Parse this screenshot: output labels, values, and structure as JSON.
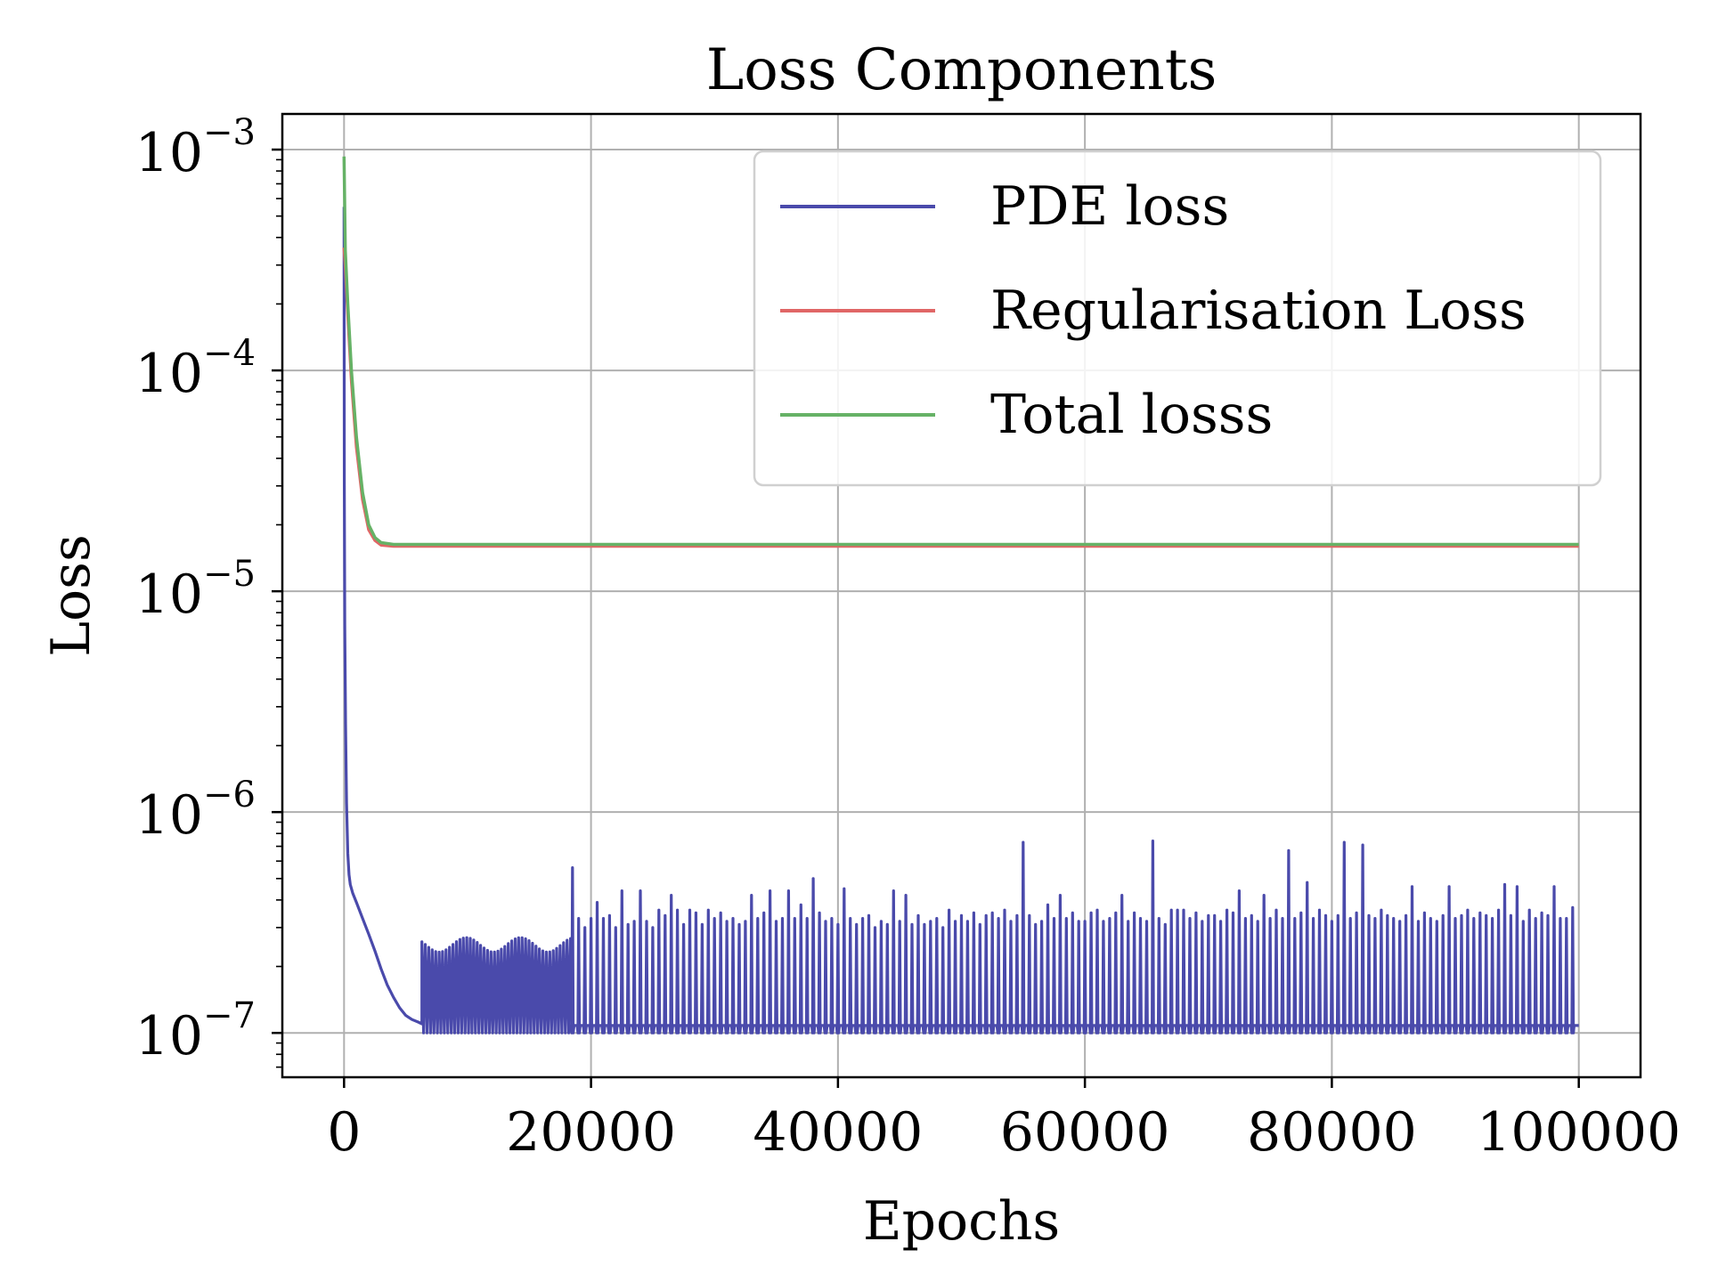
{
  "chart_data": {
    "type": "line",
    "title": "Loss Components",
    "xlabel": "Epochs",
    "ylabel": "Loss",
    "xlim": [
      -5000,
      105000
    ],
    "ylim": [
      6.3e-08,
      0.00145
    ],
    "yscale": "log",
    "grid": true,
    "legend_position": "top-right",
    "x_ticks": [
      0,
      20000,
      40000,
      60000,
      80000,
      100000
    ],
    "x_tick_labels": [
      "0",
      "20000",
      "40000",
      "60000",
      "80000",
      "100000"
    ],
    "y_ticks": [
      1e-07,
      1e-06,
      1e-05,
      0.0001,
      0.001
    ],
    "y_tick_labels": [
      {
        "base": "10",
        "exp": "−7"
      },
      {
        "base": "10",
        "exp": "−6"
      },
      {
        "base": "10",
        "exp": "−5"
      },
      {
        "base": "10",
        "exp": "−4"
      },
      {
        "base": "10",
        "exp": "−3"
      }
    ],
    "series": [
      {
        "name": "PDE loss",
        "color": "#4a4aab",
        "x": [
          0,
          20,
          60,
          120,
          200,
          300,
          400,
          500,
          700,
          1000,
          1500,
          2000,
          2500,
          3000,
          3500,
          4000,
          4500,
          5000,
          5500,
          6000,
          6300
        ],
        "y": [
          0.00055,
          3e-05,
          7e-06,
          2.5e-06,
          1.1e-06,
          6.5e-07,
          5.2e-07,
          4.7e-07,
          4.3e-07,
          3.9e-07,
          3.3e-07,
          2.8e-07,
          2.35e-07,
          1.95e-07,
          1.65e-07,
          1.45e-07,
          1.3e-07,
          1.2e-07,
          1.15e-07,
          1.12e-07,
          1.1e-07
        ],
        "dense_region": {
          "x_start": 6300,
          "x_end": 18600,
          "low": 1e-07,
          "high": 2.7e-07,
          "step": 140
        },
        "baseline": 1.08e-07,
        "spike_floor": 1e-07,
        "spikes": [
          [
            18500,
            5.6e-07
          ],
          [
            19000,
            3.3e-07
          ],
          [
            19500,
            3e-07
          ],
          [
            20000,
            3.3e-07
          ],
          [
            20500,
            3.9e-07
          ],
          [
            21000,
            3.3e-07
          ],
          [
            21500,
            3.4e-07
          ],
          [
            22000,
            3e-07
          ],
          [
            22500,
            4.4e-07
          ],
          [
            23000,
            3.1e-07
          ],
          [
            23500,
            3.2e-07
          ],
          [
            24000,
            4.4e-07
          ],
          [
            24500,
            3.2e-07
          ],
          [
            25000,
            3e-07
          ],
          [
            25500,
            3.6e-07
          ],
          [
            26000,
            3.4e-07
          ],
          [
            26500,
            4.2e-07
          ],
          [
            27000,
            3.6e-07
          ],
          [
            27500,
            3.1e-07
          ],
          [
            28000,
            3.6e-07
          ],
          [
            28500,
            3.5e-07
          ],
          [
            29000,
            3.1e-07
          ],
          [
            29500,
            3.6e-07
          ],
          [
            30000,
            3.3e-07
          ],
          [
            30500,
            3.5e-07
          ],
          [
            31000,
            3.2e-07
          ],
          [
            31500,
            3.3e-07
          ],
          [
            32000,
            3.1e-07
          ],
          [
            32500,
            3.2e-07
          ],
          [
            33000,
            4.2e-07
          ],
          [
            33500,
            3.3e-07
          ],
          [
            34000,
            3.5e-07
          ],
          [
            34500,
            4.4e-07
          ],
          [
            35000,
            3.2e-07
          ],
          [
            35500,
            3.3e-07
          ],
          [
            36000,
            4.4e-07
          ],
          [
            36500,
            3.3e-07
          ],
          [
            37000,
            3.8e-07
          ],
          [
            37500,
            3.3e-07
          ],
          [
            38000,
            5e-07
          ],
          [
            38500,
            3.5e-07
          ],
          [
            39000,
            3.2e-07
          ],
          [
            39500,
            3.3e-07
          ],
          [
            40000,
            3.1e-07
          ],
          [
            40500,
            4.5e-07
          ],
          [
            41000,
            3.3e-07
          ],
          [
            41500,
            3.1e-07
          ],
          [
            42000,
            3.3e-07
          ],
          [
            42500,
            3.4e-07
          ],
          [
            43000,
            3e-07
          ],
          [
            43500,
            3.2e-07
          ],
          [
            44000,
            3.1e-07
          ],
          [
            44500,
            4.4e-07
          ],
          [
            45000,
            3.2e-07
          ],
          [
            45500,
            4.2e-07
          ],
          [
            46000,
            3.1e-07
          ],
          [
            46500,
            3.4e-07
          ],
          [
            47000,
            3.1e-07
          ],
          [
            47500,
            3.2e-07
          ],
          [
            48000,
            3.3e-07
          ],
          [
            48500,
            3e-07
          ],
          [
            49000,
            3.6e-07
          ],
          [
            49500,
            3.2e-07
          ],
          [
            50000,
            3.4e-07
          ],
          [
            50500,
            3.2e-07
          ],
          [
            51000,
            3.5e-07
          ],
          [
            51500,
            3.1e-07
          ],
          [
            52000,
            3.4e-07
          ],
          [
            52500,
            3.5e-07
          ],
          [
            53000,
            3.3e-07
          ],
          [
            53500,
            3.6e-07
          ],
          [
            54000,
            3.2e-07
          ],
          [
            54500,
            3.4e-07
          ],
          [
            55000,
            7.3e-07
          ],
          [
            55500,
            3.4e-07
          ],
          [
            56000,
            3.1e-07
          ],
          [
            56500,
            3.2e-07
          ],
          [
            57000,
            3.8e-07
          ],
          [
            57500,
            3.3e-07
          ],
          [
            58000,
            4.2e-07
          ],
          [
            58500,
            3.3e-07
          ],
          [
            59000,
            3.5e-07
          ],
          [
            59500,
            3.2e-07
          ],
          [
            60000,
            3.2e-07
          ],
          [
            60500,
            3.5e-07
          ],
          [
            61000,
            3.6e-07
          ],
          [
            61500,
            3.2e-07
          ],
          [
            62000,
            3.3e-07
          ],
          [
            62500,
            3.5e-07
          ],
          [
            63000,
            4.2e-07
          ],
          [
            63500,
            3.2e-07
          ],
          [
            64000,
            3.5e-07
          ],
          [
            64500,
            3.3e-07
          ],
          [
            65000,
            3.2e-07
          ],
          [
            65500,
            7.4e-07
          ],
          [
            66000,
            3.3e-07
          ],
          [
            66500,
            3.1e-07
          ],
          [
            67000,
            3.6e-07
          ],
          [
            67500,
            3.6e-07
          ],
          [
            68000,
            3.6e-07
          ],
          [
            68500,
            3.3e-07
          ],
          [
            69000,
            3.5e-07
          ],
          [
            69500,
            3.2e-07
          ],
          [
            70000,
            3.4e-07
          ],
          [
            70500,
            3.4e-07
          ],
          [
            71000,
            3.2e-07
          ],
          [
            71500,
            3.6e-07
          ],
          [
            72000,
            3.5e-07
          ],
          [
            72500,
            4.4e-07
          ],
          [
            73000,
            3.3e-07
          ],
          [
            73500,
            3.4e-07
          ],
          [
            74000,
            3.2e-07
          ],
          [
            74500,
            4.2e-07
          ],
          [
            75000,
            3.3e-07
          ],
          [
            75500,
            3.6e-07
          ],
          [
            76000,
            3.3e-07
          ],
          [
            76500,
            6.7e-07
          ],
          [
            77000,
            3.3e-07
          ],
          [
            77500,
            3.5e-07
          ],
          [
            78000,
            4.8e-07
          ],
          [
            78500,
            3.3e-07
          ],
          [
            79000,
            3.6e-07
          ],
          [
            79500,
            3.4e-07
          ],
          [
            80000,
            3.2e-07
          ],
          [
            80500,
            3.4e-07
          ],
          [
            81000,
            7.3e-07
          ],
          [
            81500,
            3.3e-07
          ],
          [
            82000,
            3.5e-07
          ],
          [
            82500,
            7.1e-07
          ],
          [
            83000,
            3.4e-07
          ],
          [
            83500,
            3.3e-07
          ],
          [
            84000,
            3.6e-07
          ],
          [
            84500,
            3.4e-07
          ],
          [
            85000,
            3.3e-07
          ],
          [
            85500,
            3.2e-07
          ],
          [
            86000,
            3.4e-07
          ],
          [
            86500,
            4.6e-07
          ],
          [
            87000,
            3.2e-07
          ],
          [
            87500,
            3.5e-07
          ],
          [
            88000,
            3.3e-07
          ],
          [
            88500,
            3.2e-07
          ],
          [
            89000,
            3.4e-07
          ],
          [
            89500,
            4.6e-07
          ],
          [
            90000,
            3.3e-07
          ],
          [
            90500,
            3.4e-07
          ],
          [
            91000,
            3.6e-07
          ],
          [
            91500,
            3.3e-07
          ],
          [
            92000,
            3.5e-07
          ],
          [
            92500,
            3.4e-07
          ],
          [
            93000,
            3.3e-07
          ],
          [
            93500,
            3.6e-07
          ],
          [
            94000,
            4.7e-07
          ],
          [
            94500,
            3.4e-07
          ],
          [
            95000,
            4.6e-07
          ],
          [
            95500,
            3.2e-07
          ],
          [
            96000,
            3.6e-07
          ],
          [
            96500,
            3.3e-07
          ],
          [
            97000,
            3.5e-07
          ],
          [
            97500,
            3.4e-07
          ],
          [
            98000,
            4.6e-07
          ],
          [
            98500,
            3.3e-07
          ],
          [
            99000,
            3.3e-07
          ],
          [
            99500,
            3.7e-07
          ]
        ],
        "x_end": 100000
      },
      {
        "name": "Regularisation Loss",
        "color": "#e06666",
        "x": [
          0,
          100,
          300,
          600,
          1000,
          1500,
          2000,
          2500,
          3000,
          4000,
          6000,
          10000,
          100000
        ],
        "y": [
          0.00036,
          0.0003,
          0.00018,
          9e-05,
          4.5e-05,
          2.6e-05,
          1.9e-05,
          1.7e-05,
          1.62e-05,
          1.6e-05,
          1.6e-05,
          1.6e-05,
          1.6e-05
        ]
      },
      {
        "name": "Total losss",
        "color": "#66b266",
        "x": [
          0,
          100,
          300,
          600,
          1000,
          1500,
          2000,
          2500,
          3000,
          4000,
          6000,
          10000,
          100000
        ],
        "y": [
          0.00093,
          0.00035,
          0.0002,
          0.0001,
          5e-05,
          2.8e-05,
          2e-05,
          1.75e-05,
          1.66e-05,
          1.63e-05,
          1.63e-05,
          1.63e-05,
          1.63e-05
        ]
      }
    ]
  }
}
